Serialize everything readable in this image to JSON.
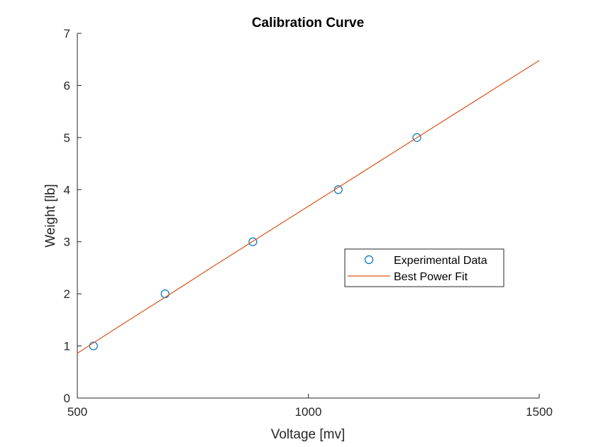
{
  "chart_data": {
    "type": "scatter",
    "title": "Calibration Curve",
    "xlabel": "Voltage [mv]",
    "ylabel": "Weight [lb]",
    "xlim": [
      500,
      1500
    ],
    "ylim": [
      0,
      7
    ],
    "xticks": [
      500,
      1000,
      1500
    ],
    "yticks": [
      0,
      1,
      2,
      3,
      4,
      5,
      6,
      7
    ],
    "grid": false,
    "legend_position": "center-right",
    "series": [
      {
        "name": "Experimental Data",
        "kind": "scatter",
        "marker": "open-circle",
        "color": "#0072BD",
        "x": [
          535,
          690,
          880,
          1065,
          1235
        ],
        "y": [
          1,
          2,
          3,
          4,
          5
        ]
      },
      {
        "name": "Best Power Fit",
        "kind": "line",
        "color": "#D95319",
        "x": [
          500,
          600,
          700,
          800,
          900,
          1000,
          1100,
          1200,
          1300,
          1400,
          1500
        ],
        "y": [
          0.86,
          1.43,
          1.99,
          2.56,
          3.12,
          3.68,
          4.24,
          4.8,
          5.36,
          5.92,
          6.48
        ]
      }
    ]
  }
}
